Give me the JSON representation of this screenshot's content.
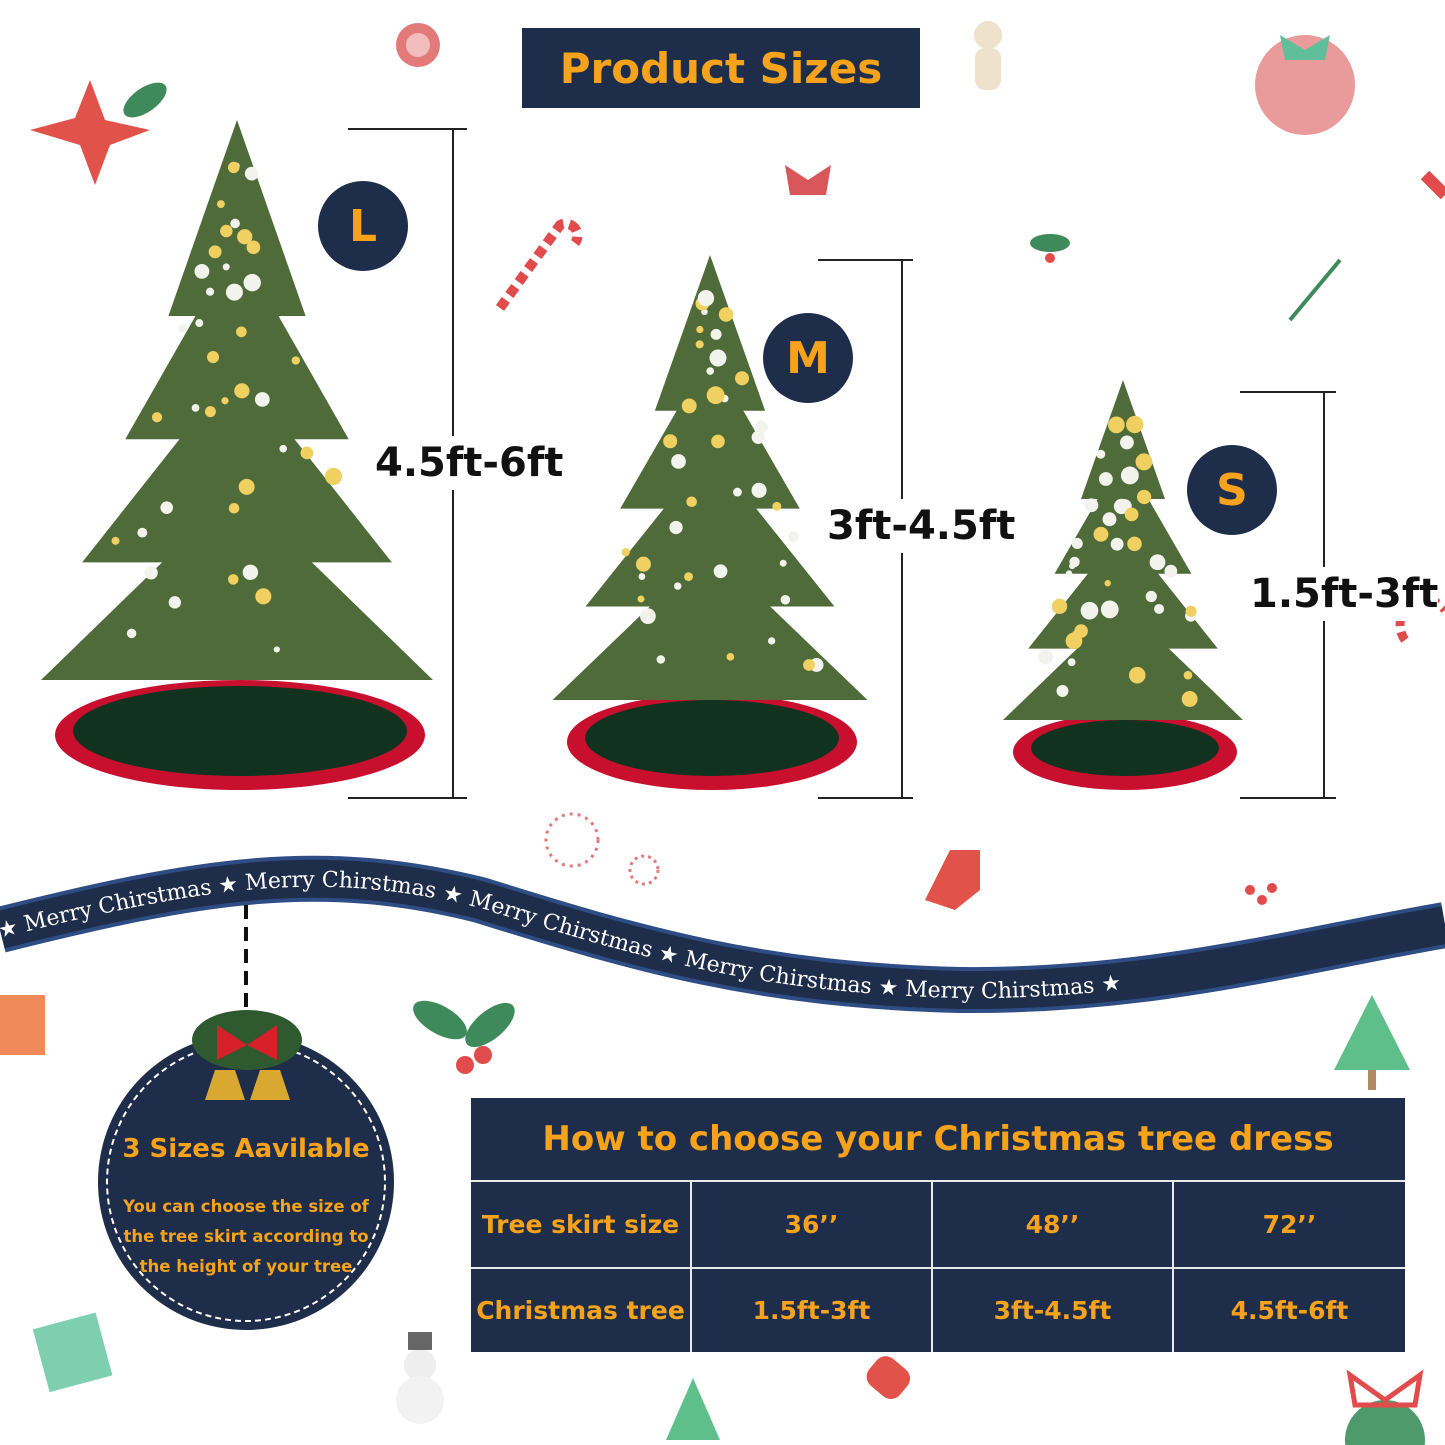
{
  "title": "Product Sizes",
  "sizes": [
    {
      "badge": "L",
      "height_label": "4.5ft-6ft"
    },
    {
      "badge": "M",
      "height_label": "3ft-4.5ft"
    },
    {
      "badge": "S",
      "height_label": "1.5ft-3ft"
    }
  ],
  "ribbon": {
    "text": "Merry Chirstmas",
    "star": "★"
  },
  "info": {
    "heading": "3 Sizes Aavilable",
    "body": "You can choose the size of the tree skirt according to the height of your tree"
  },
  "table": {
    "title": "How to choose your Christmas tree dress",
    "rows": [
      {
        "label": "Tree skirt size",
        "values": [
          "36’’",
          "48’’",
          "72’’"
        ]
      },
      {
        "label": "Christmas tree",
        "values": [
          "1.5ft-3ft",
          "3ft-4.5ft",
          "4.5ft-6ft"
        ]
      }
    ]
  },
  "colors": {
    "navy": "#1e2d4a",
    "orange": "#f7a21b",
    "skirt_red": "#c8102e",
    "skirt_green": "#10321f",
    "tree_green": "#4f6b3a"
  }
}
